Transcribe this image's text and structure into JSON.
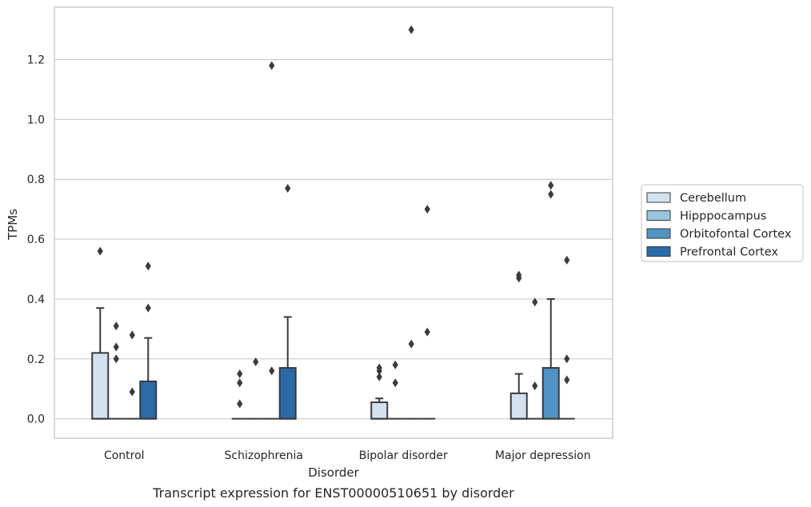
{
  "chart_data": {
    "type": "box",
    "title": "",
    "caption": "Transcript expression for ENST00000510651 by disorder",
    "xlabel": "Disorder",
    "ylabel": "TPMs",
    "ylim": [
      -0.065,
      1.375
    ],
    "yticks": [
      "0.0",
      "0.2",
      "0.4",
      "0.6",
      "0.8",
      "1.0",
      "1.2"
    ],
    "categories": [
      "Control",
      "Schizophrenia",
      "Bipolar disorder",
      "Major depression"
    ],
    "grid": "horizontal",
    "legend_position": "right",
    "series": [
      {
        "name": "Cerebellum",
        "color": "#d4e2f0",
        "boxes": [
          {
            "q1": 0,
            "median": 0,
            "q3": 0.22,
            "whisker_low": 0,
            "whisker_high": 0.37,
            "outliers": [
              0.56
            ]
          },
          {
            "q1": 0,
            "median": 0,
            "q3": 0,
            "whisker_low": 0,
            "whisker_high": 0,
            "outliers": [
              0.15,
              0.12,
              0.05
            ]
          },
          {
            "q1": 0,
            "median": 0,
            "q3": 0.055,
            "whisker_low": 0,
            "whisker_high": 0.068,
            "outliers": [
              0.17,
              0.16,
              0.14
            ]
          },
          {
            "q1": 0,
            "median": 0,
            "q3": 0.085,
            "whisker_low": 0,
            "whisker_high": 0.15,
            "outliers": [
              0.48,
              0.47
            ]
          }
        ]
      },
      {
        "name": "Hipppocampus",
        "color": "#9ac4de",
        "boxes": [
          {
            "q1": 0,
            "median": 0,
            "q3": 0,
            "whisker_low": 0,
            "whisker_high": 0,
            "outliers": [
              0.31,
              0.24,
              0.2
            ]
          },
          {
            "q1": 0,
            "median": 0,
            "q3": 0,
            "whisker_low": 0,
            "whisker_high": 0,
            "outliers": [
              0.19
            ]
          },
          {
            "q1": 0,
            "median": 0,
            "q3": 0,
            "whisker_low": 0,
            "whisker_high": 0,
            "outliers": [
              0.18,
              0.12
            ]
          },
          {
            "q1": 0,
            "median": 0,
            "q3": 0,
            "whisker_low": 0,
            "whisker_high": 0,
            "outliers": [
              0.39,
              0.11
            ]
          }
        ]
      },
      {
        "name": "Orbitofontal Cortex",
        "color": "#4f94c4",
        "boxes": [
          {
            "q1": 0,
            "median": 0,
            "q3": 0,
            "whisker_low": 0,
            "whisker_high": 0,
            "outliers": [
              0.28,
              0.09
            ]
          },
          {
            "q1": 0,
            "median": 0,
            "q3": 0,
            "whisker_low": 0,
            "whisker_high": 0,
            "outliers": [
              1.18,
              0.16
            ]
          },
          {
            "q1": 0,
            "median": 0,
            "q3": 0,
            "whisker_low": 0,
            "whisker_high": 0,
            "outliers": [
              1.3,
              0.25
            ]
          },
          {
            "q1": 0,
            "median": 0,
            "q3": 0.17,
            "whisker_low": 0,
            "whisker_high": 0.4,
            "outliers": [
              0.78,
              0.75
            ]
          }
        ]
      },
      {
        "name": "Prefrontal Cortex",
        "color": "#2b69a8",
        "boxes": [
          {
            "q1": 0,
            "median": 0,
            "q3": 0.125,
            "whisker_low": 0,
            "whisker_high": 0.27,
            "outliers": [
              0.51,
              0.37
            ]
          },
          {
            "q1": 0,
            "median": 0,
            "q3": 0.17,
            "whisker_low": 0,
            "whisker_high": 0.34,
            "outliers": [
              0.77
            ]
          },
          {
            "q1": 0,
            "median": 0,
            "q3": 0,
            "whisker_low": 0,
            "whisker_high": 0,
            "outliers": [
              0.7,
              0.29
            ]
          },
          {
            "q1": 0,
            "median": 0,
            "q3": 0,
            "whisker_low": 0,
            "whisker_high": 0,
            "outliers": [
              0.53,
              0.2,
              0.13
            ]
          }
        ]
      }
    ]
  }
}
